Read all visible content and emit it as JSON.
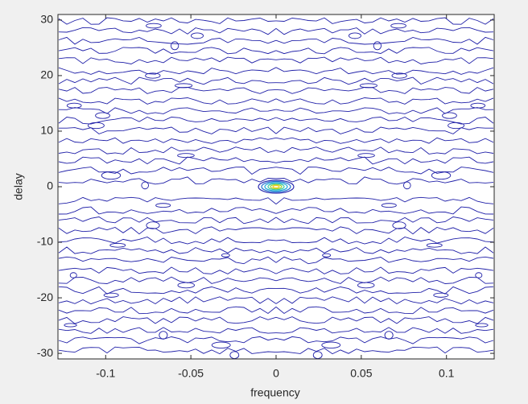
{
  "chart_data": {
    "type": "contour",
    "xlabel": "frequency",
    "ylabel": "delay",
    "xlim": [
      -0.128,
      0.128
    ],
    "ylim": [
      -31,
      31
    ],
    "xticks": [
      -0.1,
      -0.05,
      0,
      0.05,
      0.1
    ],
    "yticks": [
      -30,
      -20,
      -10,
      0,
      10,
      20,
      30
    ],
    "color": "#1f1fa8"
  }
}
